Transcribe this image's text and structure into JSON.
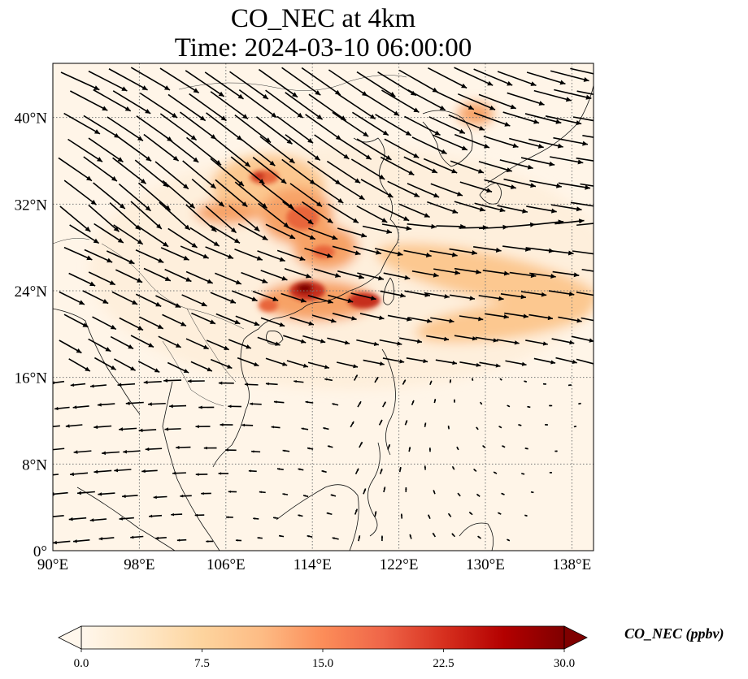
{
  "title": {
    "line1": "CO_NEC at 4km",
    "line2": "Time: 2024-03-10 06:00:00"
  },
  "map": {
    "lon_range": [
      90,
      140
    ],
    "lat_range": [
      0,
      45
    ],
    "lon_ticks": [
      {
        "value": 90,
        "label": "90°E"
      },
      {
        "value": 98,
        "label": "98°E"
      },
      {
        "value": 106,
        "label": "106°E"
      },
      {
        "value": 114,
        "label": "114°E"
      },
      {
        "value": 122,
        "label": "122°E"
      },
      {
        "value": 130,
        "label": "130°E"
      },
      {
        "value": 138,
        "label": "138°E"
      }
    ],
    "lat_ticks": [
      {
        "value": 0,
        "label": "0°"
      },
      {
        "value": 8,
        "label": "8°N"
      },
      {
        "value": 16,
        "label": "16°N"
      },
      {
        "value": 24,
        "label": "24°N"
      },
      {
        "value": 32,
        "label": "32°N"
      },
      {
        "value": 40,
        "label": "40°N"
      }
    ],
    "gridlines": "dotted",
    "plume_colors": [
      "#fdebd3",
      "#fcc890",
      "#f7a266",
      "#e8653a",
      "#c62d1f",
      "#7f0000"
    ]
  },
  "colorbar": {
    "label": "CO_NEC (ppbv)",
    "min": 0,
    "max": 30,
    "extend": "both",
    "ticks": [
      {
        "value": 0,
        "label": "0.0"
      },
      {
        "value": 7.5,
        "label": "7.5"
      },
      {
        "value": 15,
        "label": "15.0"
      },
      {
        "value": 22.5,
        "label": "22.5"
      },
      {
        "value": 30,
        "label": "30.0"
      }
    ],
    "colormap": [
      "#fff7ec",
      "#fee8c8",
      "#fdd49e",
      "#fdbb84",
      "#fc8d59",
      "#ef6548",
      "#d7301f",
      "#b30000",
      "#7f0000"
    ]
  }
}
